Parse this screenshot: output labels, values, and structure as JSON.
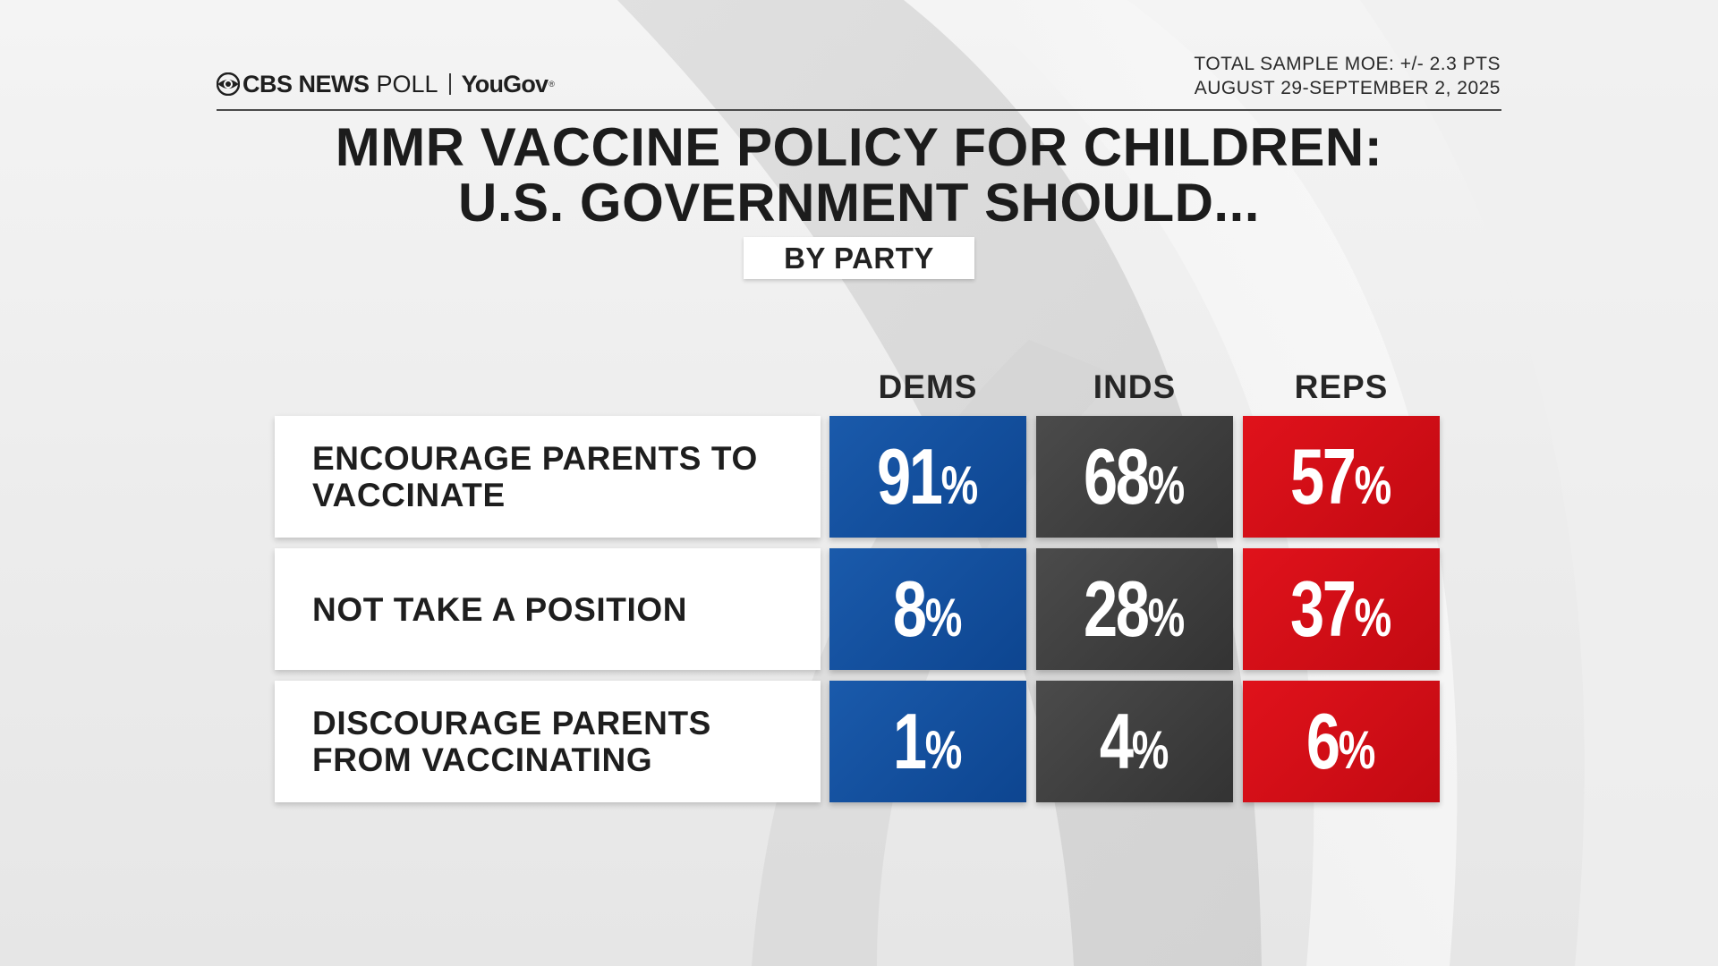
{
  "brand": {
    "network": "CBS NEWS",
    "poll_word": "POLL",
    "partner": "YouGov",
    "partner_mark": "®"
  },
  "meta": {
    "moe": "TOTAL SAMPLE MOE: +/- 2.3 PTS",
    "dates": "AUGUST 29-SEPTEMBER 2, 2025"
  },
  "title": {
    "line1": "MMR VACCINE POLICY FOR CHILDREN:",
    "line2": "U.S. GOVERNMENT SHOULD..."
  },
  "subtitle": "BY PARTY",
  "colors": {
    "dems": "#1a5aab",
    "inds": "#444444",
    "reps": "#e0121b"
  },
  "chart_data": {
    "type": "table",
    "title": "MMR VACCINE POLICY FOR CHILDREN: U.S. GOVERNMENT SHOULD...",
    "subtitle": "BY PARTY",
    "unit": "%",
    "columns": [
      "DEMS",
      "INDS",
      "REPS"
    ],
    "rows": [
      {
        "label": "ENCOURAGE PARENTS TO\nVACCINATE",
        "values": [
          91,
          68,
          57
        ]
      },
      {
        "label": "NOT TAKE A POSITION",
        "values": [
          8,
          28,
          37
        ]
      },
      {
        "label": "DISCOURAGE PARENTS\nFROM VACCINATING",
        "values": [
          1,
          4,
          6
        ]
      }
    ]
  }
}
